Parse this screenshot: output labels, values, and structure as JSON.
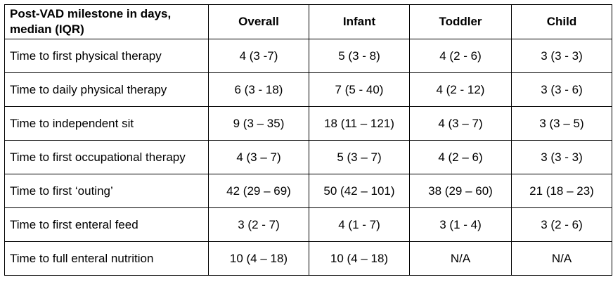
{
  "table": {
    "corner_header": "Post-VAD milestone in days, median (IQR)",
    "columns": [
      "Overall",
      "Infant",
      "Toddler",
      "Child"
    ],
    "rows": [
      {
        "label": "Time to first physical therapy",
        "values": [
          "4 (3 -7)",
          "5 (3 - 8)",
          "4 (2 - 6)",
          "3 (3 - 3)"
        ]
      },
      {
        "label": "Time to daily physical therapy",
        "values": [
          "6 (3 - 18)",
          "7 (5 - 40)",
          "4 (2 - 12)",
          "3 (3 - 6)"
        ]
      },
      {
        "label": "Time to independent sit",
        "values": [
          "9 (3 – 35)",
          "18 (11 – 121)",
          "4 (3 – 7)",
          "3 (3 – 5)"
        ]
      },
      {
        "label": "Time to first occupational therapy",
        "values": [
          "4 (3 – 7)",
          "5 (3 – 7)",
          "4 (2 – 6)",
          "3 (3 - 3)"
        ]
      },
      {
        "label": "Time to first ‘outing’",
        "values": [
          "42 (29 – 69)",
          "50 (42 – 101)",
          "38 (29 – 60)",
          "21 (18 – 23)"
        ]
      },
      {
        "label": "Time to first enteral feed",
        "values": [
          "3 (2 - 7)",
          "4 (1 - 7)",
          "3 (1 - 4)",
          "3 (2 - 6)"
        ]
      },
      {
        "label": "Time to full enteral nutrition",
        "values": [
          "10 (4 – 18)",
          "10 (4 – 18)",
          "N/A",
          "N/A"
        ]
      }
    ]
  }
}
